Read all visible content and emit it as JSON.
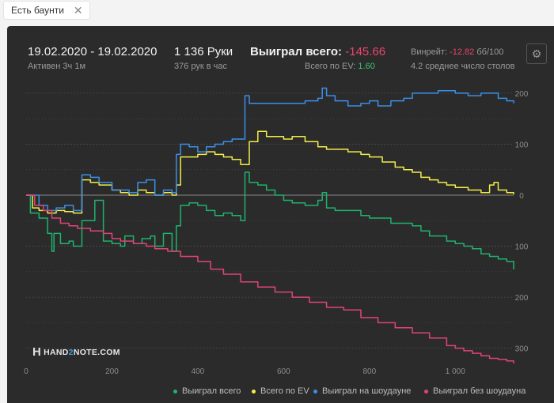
{
  "tab": {
    "label": "Есть баунти",
    "close": "✕"
  },
  "header": {
    "date_range": "19.02.2020 - 19.02.2020",
    "active": "Активен 3ч 1м",
    "hands": "1 136 Руки",
    "hands_per_hour": "376 рук в час",
    "won_total_label": "Выиграл всего:",
    "won_total_value": "-145.66",
    "ev_label": "Всего по EV:",
    "ev_value": "1.60",
    "winrate_label": "Винрейт:",
    "winrate_value": "-12.82",
    "winrate_unit": "бб/100",
    "tables": "4.2 среднее число столов",
    "settings_icon": "⚙"
  },
  "logo": {
    "mark": "H",
    "pre": "HAND",
    "mid": "2",
    "post": "NOTE.COM"
  },
  "colors": {
    "green": "#1fb36c",
    "yellow": "#f2ee49",
    "blue": "#3a90e8",
    "pink": "#e04477"
  },
  "legend": [
    {
      "label": "Выиграл всего",
      "color": "#1fb36c"
    },
    {
      "label": "Всего по EV",
      "color": "#f2ee49"
    },
    {
      "label": "Выиграл на шоудауне",
      "color": "#3a90e8"
    },
    {
      "label": "Выиграл без шоудауна",
      "color": "#e04477"
    }
  ],
  "chart_data": {
    "type": "line",
    "xlim": [
      0,
      1136
    ],
    "ylim": [
      -330,
      220
    ],
    "x_ticks": [
      0,
      200,
      400,
      600,
      800,
      1000
    ],
    "x_tick_labels": [
      "0",
      "200",
      "400",
      "600",
      "800",
      "1 000"
    ],
    "y_ticks": [
      200,
      100,
      0,
      -100,
      -200,
      -300
    ],
    "y_tick_labels": [
      "200",
      "100",
      "0",
      "100",
      "200",
      "300"
    ],
    "grid": true,
    "legend_position": "bottom",
    "series": [
      {
        "name": "Выиграл всего",
        "color": "#1fb36c",
        "x": [
          0,
          10,
          30,
          50,
          60,
          65,
          80,
          100,
          110,
          130,
          160,
          180,
          200,
          220,
          230,
          250,
          270,
          290,
          300,
          320,
          340,
          350,
          360,
          380,
          400,
          420,
          440,
          460,
          480,
          500,
          510,
          520,
          540,
          560,
          580,
          600,
          620,
          650,
          680,
          690,
          700,
          720,
          750,
          780,
          800,
          830,
          850,
          880,
          900,
          920,
          940,
          960,
          980,
          1000,
          1020,
          1040,
          1060,
          1080,
          1100,
          1120,
          1136
        ],
        "y": [
          0,
          -35,
          -45,
          -75,
          -110,
          -75,
          -95,
          -90,
          -100,
          -50,
          -10,
          -90,
          -95,
          -100,
          -80,
          -95,
          -85,
          -80,
          -100,
          -75,
          -110,
          -60,
          -20,
          -15,
          -20,
          -30,
          -40,
          -35,
          -40,
          -50,
          45,
          25,
          20,
          10,
          0,
          -10,
          -15,
          -20,
          -10,
          5,
          -25,
          -30,
          -30,
          -40,
          -45,
          -45,
          -55,
          -55,
          -60,
          -70,
          -80,
          -80,
          -90,
          -95,
          -100,
          -105,
          -115,
          -120,
          -125,
          -130,
          -145.66
        ]
      },
      {
        "name": "Всего по EV",
        "color": "#f2ee49",
        "x": [
          0,
          15,
          30,
          50,
          70,
          90,
          110,
          130,
          150,
          170,
          200,
          220,
          240,
          260,
          280,
          300,
          320,
          340,
          350,
          360,
          380,
          400,
          420,
          440,
          460,
          480,
          500,
          520,
          540,
          560,
          580,
          600,
          620,
          650,
          680,
          700,
          720,
          750,
          780,
          800,
          830,
          860,
          880,
          900,
          920,
          940,
          960,
          980,
          1000,
          1030,
          1060,
          1080,
          1090,
          1100,
          1120,
          1136
        ],
        "y": [
          0,
          -25,
          -30,
          -35,
          -30,
          -32,
          -35,
          30,
          25,
          20,
          10,
          5,
          0,
          10,
          5,
          0,
          5,
          0,
          20,
          75,
          75,
          80,
          85,
          80,
          75,
          70,
          60,
          105,
          125,
          115,
          115,
          110,
          115,
          105,
          95,
          90,
          90,
          85,
          80,
          75,
          65,
          55,
          50,
          45,
          35,
          30,
          25,
          20,
          15,
          10,
          5,
          20,
          25,
          10,
          5,
          1.6
        ]
      },
      {
        "name": "Выиграл на шоудауне",
        "color": "#3a90e8",
        "x": [
          0,
          10,
          30,
          50,
          70,
          90,
          110,
          130,
          150,
          170,
          200,
          220,
          240,
          260,
          280,
          300,
          320,
          340,
          350,
          360,
          380,
          400,
          420,
          440,
          460,
          480,
          500,
          510,
          520,
          550,
          600,
          650,
          680,
          690,
          700,
          720,
          750,
          780,
          800,
          820,
          850,
          880,
          900,
          930,
          960,
          1000,
          1030,
          1060,
          1100,
          1120,
          1136
        ],
        "y": [
          0,
          0,
          -20,
          -30,
          -25,
          -20,
          -30,
          40,
          35,
          25,
          10,
          10,
          5,
          25,
          30,
          0,
          10,
          5,
          80,
          100,
          95,
          85,
          95,
          100,
          105,
          110,
          110,
          195,
          180,
          180,
          180,
          185,
          190,
          210,
          195,
          185,
          175,
          180,
          185,
          175,
          185,
          190,
          200,
          200,
          205,
          200,
          195,
          200,
          190,
          185,
          180
        ]
      },
      {
        "name": "Выиграл без шоудауна",
        "color": "#e04477",
        "x": [
          0,
          20,
          40,
          60,
          80,
          100,
          120,
          150,
          180,
          200,
          220,
          250,
          280,
          300,
          330,
          360,
          400,
          430,
          460,
          500,
          540,
          580,
          620,
          660,
          700,
          740,
          780,
          820,
          860,
          900,
          940,
          980,
          1000,
          1020,
          1040,
          1060,
          1080,
          1100,
          1120,
          1136
        ],
        "y": [
          0,
          -20,
          -30,
          -45,
          -55,
          -60,
          -65,
          -70,
          -75,
          -85,
          -90,
          -95,
          -100,
          -105,
          -110,
          -120,
          -130,
          -145,
          -155,
          -170,
          -180,
          -190,
          -200,
          -210,
          -220,
          -225,
          -240,
          -250,
          -260,
          -270,
          -280,
          -295,
          -300,
          -305,
          -310,
          -315,
          -320,
          -322,
          -325,
          -330
        ]
      }
    ]
  }
}
